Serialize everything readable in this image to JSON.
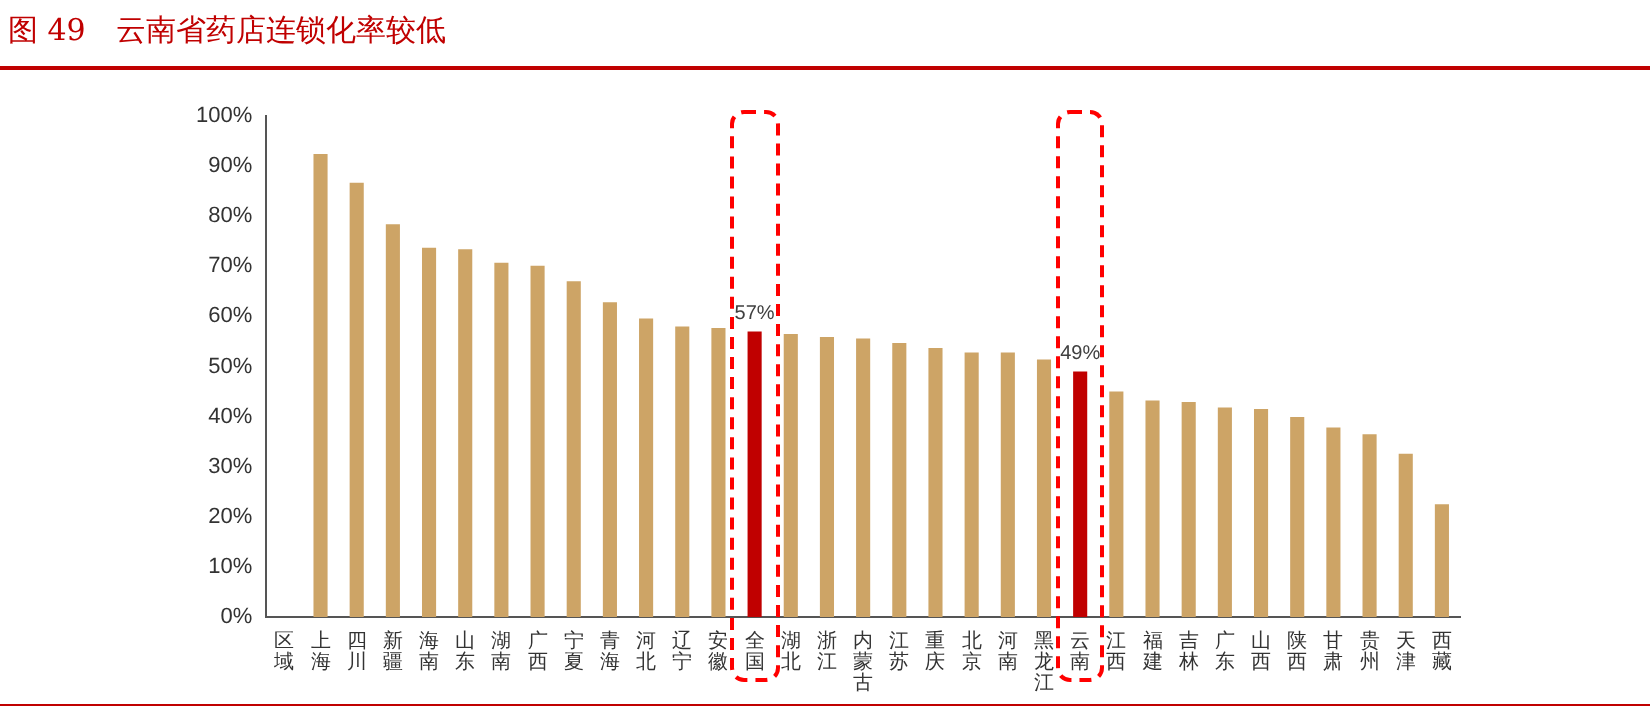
{
  "chart_data": {
    "type": "bar",
    "title": "图 49　云南省药店连锁化率较低",
    "categories": [
      "区域",
      "上海",
      "四川",
      "新疆",
      "海南",
      "山东",
      "湖南",
      "广西",
      "宁夏",
      "青海",
      "河北",
      "辽宁",
      "安徽",
      "全国",
      "湖北",
      "浙江",
      "内蒙古",
      "江苏",
      "重庆",
      "北京",
      "河南",
      "黑龙江",
      "云南",
      "江西",
      "福建",
      "吉林",
      "广东",
      "山西",
      "陕西",
      "甘肃",
      "贵州",
      "天津",
      "西藏"
    ],
    "values": [
      null,
      92.4,
      86.7,
      78.4,
      73.7,
      73.4,
      70.7,
      70.1,
      67.0,
      62.8,
      59.6,
      58.0,
      57.7,
      57,
      56.5,
      55.9,
      55.6,
      54.7,
      53.7,
      52.8,
      52.8,
      51.4,
      49,
      45.0,
      43.2,
      42.9,
      41.8,
      41.5,
      39.9,
      37.8,
      36.5,
      32.6,
      22.5
    ],
    "colors": [
      "#cda466",
      "#cda466",
      "#cda466",
      "#cda466",
      "#cda466",
      "#cda466",
      "#cda466",
      "#cda466",
      "#cda466",
      "#cda466",
      "#cda466",
      "#cda466",
      "#cda466",
      "#c00000",
      "#cda466",
      "#cda466",
      "#cda466",
      "#cda466",
      "#cda466",
      "#cda466",
      "#cda466",
      "#cda466",
      "#c00000",
      "#cda466",
      "#cda466",
      "#cda466",
      "#cda466",
      "#cda466",
      "#cda466",
      "#cda466",
      "#cda466",
      "#cda466",
      "#cda466"
    ],
    "value_labels": [
      null,
      null,
      null,
      null,
      null,
      null,
      null,
      null,
      null,
      null,
      null,
      null,
      null,
      "57%",
      null,
      null,
      null,
      null,
      null,
      null,
      null,
      null,
      "49%",
      null,
      null,
      null,
      null,
      null,
      null,
      null,
      null,
      null,
      null
    ],
    "ylim": [
      0,
      100
    ],
    "yticks": [
      {
        "value": 0,
        "label": "0%"
      },
      {
        "value": 10,
        "label": "10%"
      },
      {
        "value": 20,
        "label": "20%"
      },
      {
        "value": 30,
        "label": "30%"
      },
      {
        "value": 40,
        "label": "40%"
      },
      {
        "value": 50,
        "label": "50%"
      },
      {
        "value": 60,
        "label": "60%"
      },
      {
        "value": 70,
        "label": "70%"
      },
      {
        "value": 80,
        "label": "80%"
      },
      {
        "value": 90,
        "label": "90%"
      },
      {
        "value": 100,
        "label": "100%"
      }
    ],
    "grid": false,
    "legend": false
  }
}
